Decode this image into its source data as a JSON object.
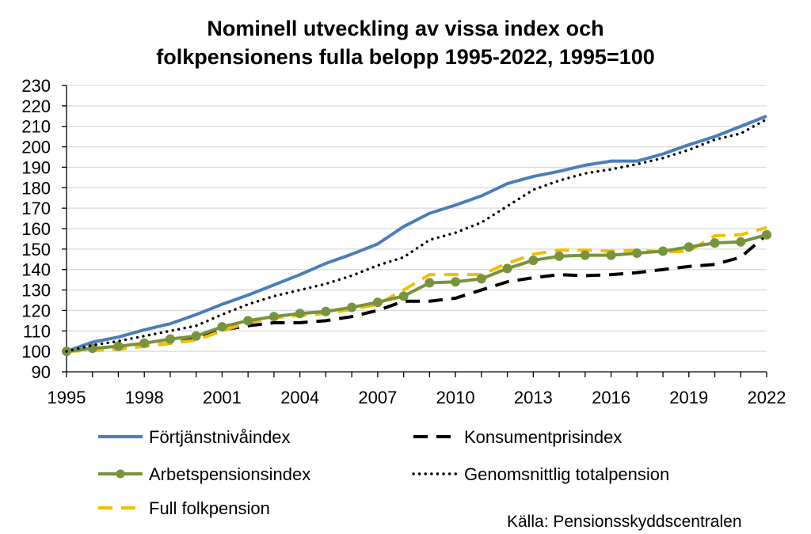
{
  "chart_data": {
    "type": "line",
    "title_line1": "Nominell utveckling av vissa index och",
    "title_line2": "folkpensionens fulla belopp 1995-2022, 1995=100",
    "x": [
      1995,
      1996,
      1997,
      1998,
      1999,
      2000,
      2001,
      2002,
      2003,
      2004,
      2005,
      2006,
      2007,
      2008,
      2009,
      2010,
      2011,
      2012,
      2013,
      2014,
      2015,
      2016,
      2017,
      2018,
      2019,
      2020,
      2021,
      2022
    ],
    "x_tick_labels": [
      "1995",
      "1998",
      "2001",
      "2004",
      "2007",
      "2010",
      "2013",
      "2016",
      "2019",
      "2022"
    ],
    "y_tick_labels": [
      "90",
      "100",
      "110",
      "120",
      "130",
      "140",
      "150",
      "160",
      "170",
      "180",
      "190",
      "200",
      "210",
      "220",
      "230"
    ],
    "ylim": [
      90,
      230
    ],
    "xlim": [
      1995,
      2022
    ],
    "grid": "horizontal",
    "legend_position": "bottom",
    "series": [
      {
        "name": "Förtjänstnivåindex",
        "color": "#4a7ebb",
        "style": "solid",
        "values": [
          100,
          104.5,
          107,
          110.5,
          113.5,
          118,
          123,
          127.5,
          132.5,
          137.5,
          143,
          147.5,
          152.5,
          161,
          167.5,
          171.5,
          176,
          182,
          185.5,
          188,
          191,
          193,
          193,
          196.5,
          201,
          205,
          210,
          215
        ]
      },
      {
        "name": "Konsumentprisindex",
        "color": "#000000",
        "style": "dash",
        "values": [
          100,
          101,
          101.5,
          102.5,
          104,
          106,
          110.5,
          112.5,
          114,
          114,
          115,
          117,
          120,
          124.5,
          124.5,
          126,
          130,
          134,
          136,
          137.5,
          137,
          137.5,
          138.5,
          140,
          141.5,
          142.5,
          146,
          157
        ]
      },
      {
        "name": "Arbetspensionsindex",
        "color": "#77933c",
        "style": "solid-markers",
        "values": [
          100,
          101.5,
          102.5,
          104,
          106,
          107.5,
          112,
          115,
          117,
          118.5,
          119.5,
          121.5,
          124,
          127,
          133.5,
          134,
          135.5,
          140.5,
          144.5,
          146.5,
          147,
          147,
          148,
          149,
          151,
          153,
          153.5,
          157
        ]
      },
      {
        "name": "Genomsnittlig totalpension",
        "color": "#000000",
        "style": "dot",
        "values": [
          100,
          103,
          105,
          107.5,
          110,
          112.5,
          118,
          123,
          127,
          130,
          133,
          137,
          142,
          146,
          154.5,
          158,
          163,
          171,
          179,
          183.5,
          187,
          189,
          191.5,
          194.5,
          198.5,
          203.5,
          206.5,
          213.5
        ]
      },
      {
        "name": "Full folkpension",
        "color": "#f2be00",
        "style": "dash",
        "values": [
          100,
          100.5,
          101,
          102.5,
          104,
          105.5,
          110,
          114,
          116.5,
          117.5,
          118.5,
          120.5,
          123,
          130,
          137.5,
          137.5,
          137.5,
          143,
          147.5,
          149.5,
          149.5,
          149,
          149.5,
          148.5,
          149,
          156.5,
          157,
          160.5
        ]
      }
    ],
    "source": "Källa: Pensionsskyddscentralen"
  }
}
